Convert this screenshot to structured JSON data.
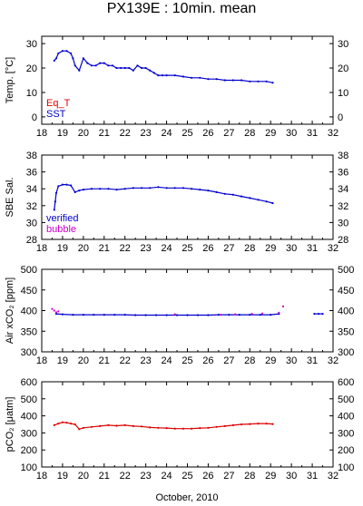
{
  "title": "PX139E : 10min. mean",
  "xlabel": "October, 2010",
  "colors": {
    "red": "#dd0000",
    "blue": "#0000cc",
    "magenta": "#cc00cc"
  },
  "chart_data": [
    {
      "type": "scatter",
      "ylabel": "Temp. [°C]",
      "xlim": [
        18,
        32
      ],
      "ylim": [
        -3,
        33
      ],
      "xticks": [
        18,
        19,
        20,
        21,
        22,
        23,
        24,
        25,
        26,
        27,
        28,
        29,
        30,
        31,
        32
      ],
      "yticks": [
        0,
        10,
        20,
        30
      ],
      "legend": [
        {
          "label": "Eq_T",
          "color": "#dd0000"
        },
        {
          "label": "SST",
          "color": "#0000cc"
        }
      ],
      "series": [
        {
          "name": "SST",
          "color": "#0000cc",
          "x": [
            18.6,
            18.7,
            18.8,
            19.0,
            19.2,
            19.4,
            19.5,
            19.6,
            19.8,
            20.0,
            20.2,
            20.4,
            20.6,
            20.8,
            21.0,
            21.2,
            21.4,
            21.6,
            21.8,
            22.0,
            22.2,
            22.4,
            22.6,
            22.8,
            23.0,
            23.2,
            23.4,
            23.6,
            23.8,
            24.0,
            24.4,
            24.8,
            25.2,
            25.6,
            26.0,
            26.4,
            26.8,
            27.2,
            27.6,
            28.0,
            28.4,
            28.8,
            29.1
          ],
          "y": [
            23,
            24,
            26,
            27,
            27,
            26,
            24,
            21,
            19,
            24,
            22,
            21,
            21,
            22,
            22,
            21,
            21,
            20,
            20,
            20,
            20,
            19,
            21,
            20,
            20,
            19,
            18,
            17,
            17,
            17,
            17,
            16.5,
            16,
            16,
            15.5,
            15.5,
            15,
            15,
            15,
            14.5,
            14.5,
            14.5,
            14
          ]
        }
      ]
    },
    {
      "type": "scatter",
      "ylabel": "SBE Sal.",
      "xlim": [
        18,
        32
      ],
      "ylim": [
        28,
        38
      ],
      "xticks": [
        18,
        19,
        20,
        21,
        22,
        23,
        24,
        25,
        26,
        27,
        28,
        29,
        30,
        31,
        32
      ],
      "yticks": [
        28,
        30,
        32,
        34,
        36,
        38
      ],
      "legend": [
        {
          "label": "verified",
          "color": "#0000cc"
        },
        {
          "label": "bubble",
          "color": "#cc00cc"
        }
      ],
      "series": [
        {
          "name": "verified",
          "color": "#0000cc",
          "x": [
            18.6,
            18.65,
            18.7,
            18.8,
            19.0,
            19.2,
            19.4,
            19.6,
            19.8,
            20.0,
            20.4,
            20.8,
            21.2,
            21.6,
            22.0,
            22.4,
            22.8,
            23.2,
            23.6,
            24.0,
            24.4,
            24.8,
            25.2,
            25.6,
            26.0,
            26.4,
            26.8,
            27.2,
            27.6,
            28.0,
            28.4,
            28.8,
            29.1
          ],
          "y": [
            31.5,
            32.5,
            33.5,
            34.3,
            34.5,
            34.5,
            34.4,
            33.6,
            33.8,
            33.9,
            34.0,
            34.0,
            34.0,
            33.9,
            34.0,
            34.1,
            34.1,
            34.1,
            34.2,
            34.1,
            34.1,
            34.1,
            34.0,
            33.9,
            33.8,
            33.6,
            33.4,
            33.3,
            33.1,
            32.9,
            32.7,
            32.5,
            32.3
          ]
        }
      ]
    },
    {
      "type": "scatter",
      "ylabel": "Air xCO₂ [ppm]",
      "xlim": [
        18,
        32
      ],
      "ylim": [
        300,
        500
      ],
      "xticks": [
        18,
        19,
        20,
        21,
        22,
        23,
        24,
        25,
        26,
        27,
        28,
        29,
        30,
        31,
        32
      ],
      "yticks": [
        300,
        350,
        400,
        450,
        500
      ],
      "series": [
        {
          "color": "#0000cc",
          "x": [
            18.7,
            19.0,
            19.5,
            20.0,
            20.5,
            21.0,
            21.5,
            22.0,
            22.5,
            23.0,
            23.5,
            24.0,
            24.5,
            25.0,
            25.5,
            26.0,
            26.5,
            27.0,
            27.5,
            28.0,
            28.5,
            29.0,
            29.4,
            31.1,
            31.3,
            31.5
          ],
          "y": [
            392,
            391,
            390,
            390,
            390,
            390,
            390,
            390,
            389,
            389,
            389,
            389,
            389,
            389,
            389,
            389,
            390,
            390,
            390,
            390,
            390,
            390,
            392,
            392,
            392,
            392
          ]
        },
        {
          "color": "#cc00cc",
          "x": [
            18.5,
            18.6,
            18.7,
            18.8,
            24.4,
            26.6,
            27.3,
            28.1,
            28.6,
            29.4,
            29.6
          ],
          "y": [
            404,
            400,
            396,
            398,
            391,
            390,
            391,
            392,
            393,
            395,
            410
          ]
        }
      ]
    },
    {
      "type": "scatter",
      "ylabel": "pCO₂ [μatm]",
      "xlim": [
        18,
        32
      ],
      "ylim": [
        100,
        600
      ],
      "xticks": [
        18,
        19,
        20,
        21,
        22,
        23,
        24,
        25,
        26,
        27,
        28,
        29,
        30,
        31,
        32
      ],
      "yticks": [
        100,
        200,
        300,
        400,
        500,
        600
      ],
      "series": [
        {
          "color": "#dd0000",
          "x": [
            18.6,
            18.8,
            19.0,
            19.2,
            19.4,
            19.6,
            19.8,
            20.0,
            20.4,
            20.8,
            21.2,
            21.6,
            22.0,
            22.4,
            22.8,
            23.2,
            23.6,
            24.0,
            24.4,
            24.8,
            25.2,
            25.6,
            26.0,
            26.4,
            26.8,
            27.2,
            27.6,
            28.0,
            28.4,
            28.8,
            29.1
          ],
          "y": [
            345,
            355,
            362,
            360,
            355,
            350,
            322,
            330,
            335,
            340,
            345,
            342,
            345,
            340,
            338,
            332,
            330,
            328,
            325,
            325,
            325,
            328,
            330,
            335,
            340,
            345,
            350,
            352,
            355,
            355,
            352
          ]
        }
      ]
    }
  ]
}
